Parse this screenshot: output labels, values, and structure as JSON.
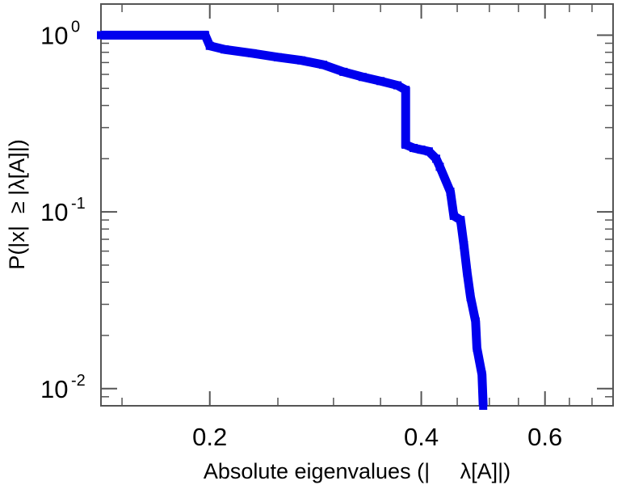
{
  "chart_data": {
    "type": "line",
    "xlabel": "Absolute eigenvalues (|     λ[A]|)",
    "ylabel": "P(|x|  ≥ |λ[A]|)",
    "x_scale": "log",
    "y_scale": "log",
    "xlim": [
      0.14,
      0.75
    ],
    "ylim": [
      0.008,
      1.5
    ],
    "x_ticks": [
      {
        "value": 0.2,
        "label": "0.2"
      },
      {
        "value": 0.4,
        "label": "0.4"
      },
      {
        "value": 0.6,
        "label": "0.6"
      }
    ],
    "y_ticks": [
      {
        "value": 1,
        "base": "10",
        "exp": "0"
      },
      {
        "value": 0.1,
        "base": "10",
        "exp": "-1"
      },
      {
        "value": 0.01,
        "base": "10",
        "exp": "-2"
      }
    ],
    "grid": false,
    "color": "#0000ee",
    "series": [
      {
        "x": [
          0.14,
          0.197,
          0.2,
          0.21,
          0.23,
          0.25,
          0.27,
          0.29,
          0.31,
          0.33,
          0.35,
          0.37,
          0.38,
          0.38,
          0.39,
          0.4,
          0.41,
          0.42,
          0.425,
          0.44,
          0.445,
          0.455,
          0.46,
          0.465,
          0.47,
          0.478,
          0.48,
          0.488,
          0.49
        ],
        "y": [
          1.0,
          1.0,
          0.87,
          0.83,
          0.79,
          0.75,
          0.72,
          0.68,
          0.62,
          0.58,
          0.55,
          0.52,
          0.49,
          0.24,
          0.23,
          0.225,
          0.22,
          0.2,
          0.18,
          0.13,
          0.095,
          0.09,
          0.065,
          0.045,
          0.033,
          0.024,
          0.017,
          0.012,
          0.008
        ]
      }
    ]
  }
}
